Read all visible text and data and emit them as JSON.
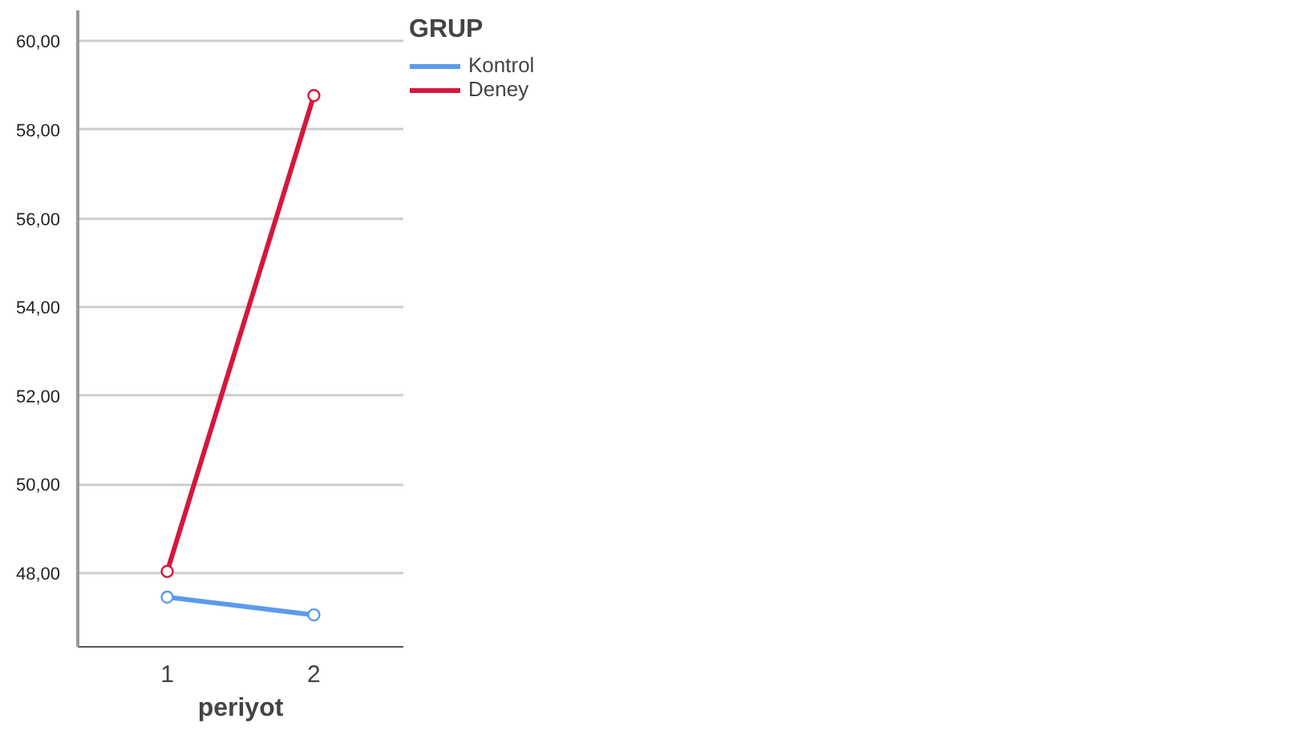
{
  "chart_data": {
    "type": "line",
    "xlabel": "periyot",
    "legend_title": "GRUP",
    "categories": [
      "1",
      "2"
    ],
    "series": [
      {
        "name": "Kontrol",
        "color": "#5b9bea",
        "values": [
          47.46,
          47.06
        ]
      },
      {
        "name": "Deney",
        "color": "#d5173d",
        "values": [
          48.04,
          58.77
        ]
      }
    ],
    "ylim": [
      46.34,
      60.69
    ],
    "yticks": [
      {
        "value": 48,
        "label": "48,00"
      },
      {
        "value": 50,
        "label": "50,00"
      },
      {
        "value": 52,
        "label": "52,00"
      },
      {
        "value": 54,
        "label": "54,00"
      },
      {
        "value": 56,
        "label": "56,00"
      },
      {
        "value": 58,
        "label": "58,00"
      },
      {
        "value": 60,
        "label": "60,00"
      }
    ],
    "grid": "y",
    "legend": "top right",
    "marker": "circle",
    "line_style": "solid"
  }
}
